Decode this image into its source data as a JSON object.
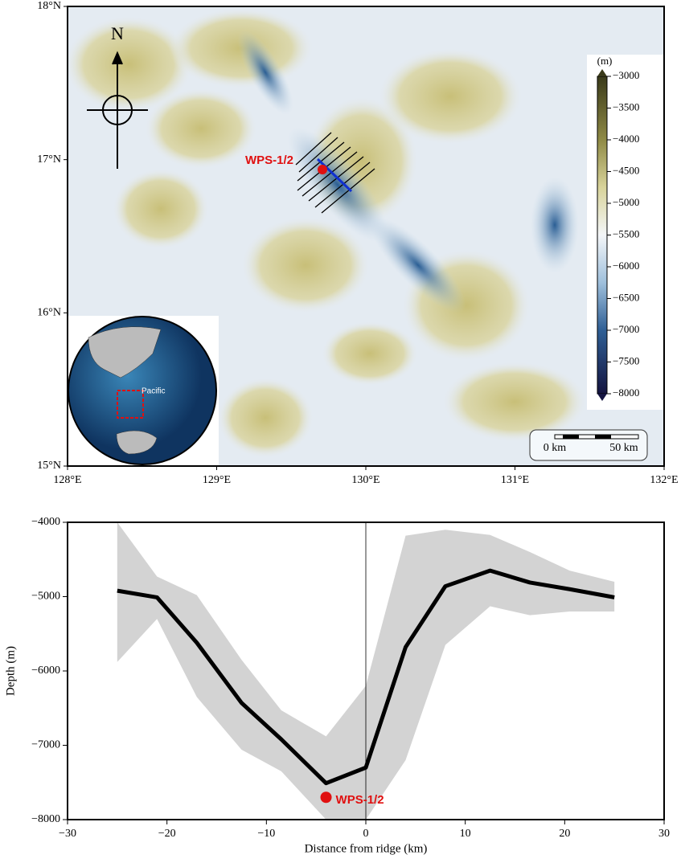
{
  "map": {
    "lat_ticks": [
      {
        "value": 18,
        "label": "18°N"
      },
      {
        "value": 17,
        "label": "17°N"
      },
      {
        "value": 16,
        "label": "16°N"
      },
      {
        "value": 15,
        "label": "15°N"
      }
    ],
    "lon_ticks": [
      {
        "value": 128,
        "label": "128°E"
      },
      {
        "value": 129,
        "label": "129°E"
      },
      {
        "value": 130,
        "label": "130°E"
      },
      {
        "value": 131,
        "label": "131°E"
      },
      {
        "value": 132,
        "label": "132°E"
      }
    ],
    "lat_lim": [
      15,
      18
    ],
    "lon_lim": [
      128,
      132
    ],
    "north_label": "N",
    "site_label": "WPS-1/2",
    "inset_label": "Pacific",
    "scale_bar": {
      "start": "0 km",
      "end": "50 km"
    },
    "colorbar": {
      "unit": "(m)",
      "lim": [
        -3000,
        -8000
      ],
      "ticks": [
        {
          "value": -3000,
          "label": "−3000"
        },
        {
          "value": -3500,
          "label": "−3500"
        },
        {
          "value": -4000,
          "label": "−4000"
        },
        {
          "value": -4500,
          "label": "−4500"
        },
        {
          "value": -5000,
          "label": "−5000"
        },
        {
          "value": -5500,
          "label": "−5500"
        },
        {
          "value": -6000,
          "label": "−6000"
        },
        {
          "value": -6500,
          "label": "−6500"
        },
        {
          "value": -7000,
          "label": "−7000"
        },
        {
          "value": -7500,
          "label": "−7500"
        },
        {
          "value": -8000,
          "label": "−8000"
        }
      ]
    }
  },
  "chart_data": {
    "type": "line",
    "xlabel": "Distance from ridge (km)",
    "ylabel": "Depth (m)",
    "xlim": [
      -30,
      30
    ],
    "ylim": [
      -8000,
      -4000
    ],
    "xticks": [
      {
        "value": -30,
        "label": "−30"
      },
      {
        "value": -20,
        "label": "−20"
      },
      {
        "value": -10,
        "label": "−10"
      },
      0,
      10,
      20,
      30
    ],
    "yticks": [
      {
        "value": -4000,
        "label": "−4000"
      },
      {
        "value": -5000,
        "label": "−5000"
      },
      {
        "value": -6000,
        "label": "−6000"
      },
      {
        "value": -7000,
        "label": "−7000"
      },
      {
        "value": -8000,
        "label": "−8000"
      }
    ],
    "x": [
      -25,
      -21,
      -17,
      -12.5,
      -8.5,
      -4,
      0,
      4,
      8,
      12.5,
      16.5,
      20.5,
      25
    ],
    "mean": {
      "color": "#000000",
      "values": [
        -4920,
        -5010,
        -5620,
        -6430,
        -6920,
        -7510,
        -7300,
        -5680,
        -4860,
        -4650,
        -4810,
        -4900,
        -5010
      ]
    },
    "band": {
      "color": "#d3d3d3",
      "upper": [
        -4000,
        -4730,
        -4980,
        -5850,
        -6530,
        -6880,
        -6200,
        -4180,
        -4100,
        -4170,
        -4400,
        -4650,
        -4800
      ],
      "lower": [
        -5880,
        -5300,
        -6350,
        -7060,
        -7350,
        -8000,
        -8000,
        -7200,
        -5650,
        -5130,
        -5250,
        -5200,
        -5200
      ]
    },
    "point": {
      "label": "WPS-1/2",
      "x": -4,
      "y": -7700,
      "color": "#e01010"
    }
  }
}
